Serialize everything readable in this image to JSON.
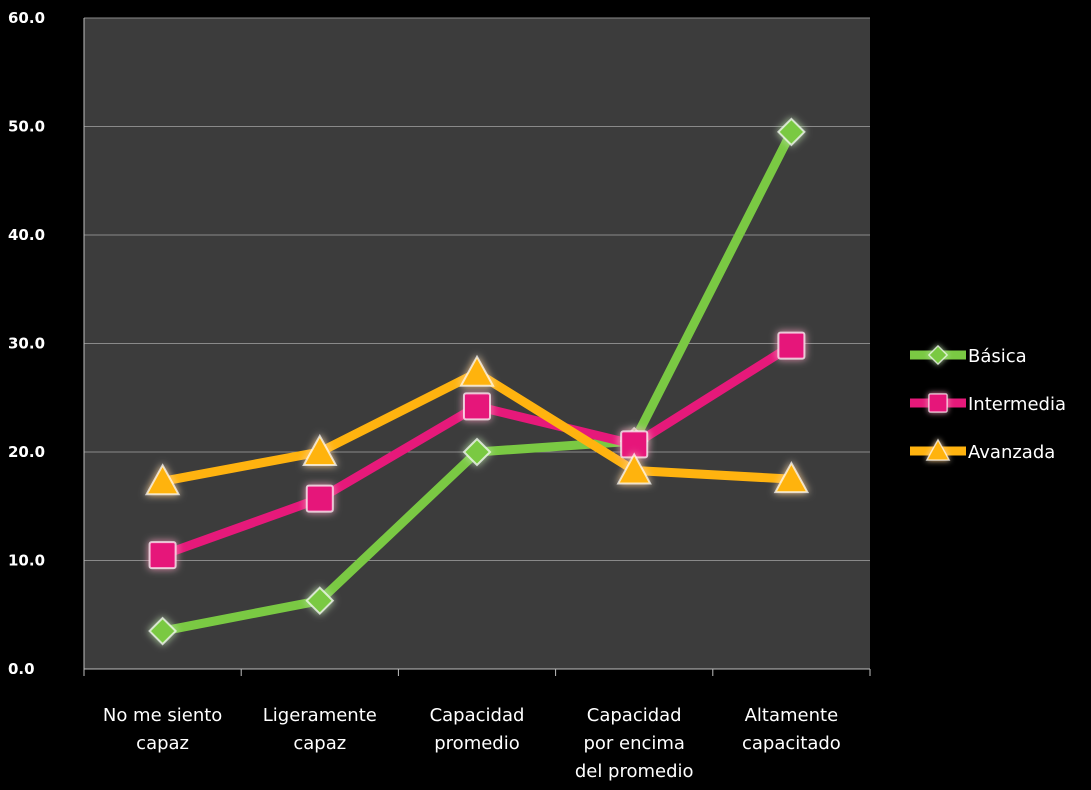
{
  "chart_data": {
    "type": "line",
    "title": "",
    "xlabel": "",
    "ylabel": "",
    "ylim": [
      0,
      60
    ],
    "y_ticks": [
      "0.0",
      "10.0",
      "20.0",
      "30.0",
      "40.0",
      "50.0",
      "60.0"
    ],
    "categories": [
      [
        "No me siento",
        "capaz"
      ],
      [
        "Ligeramente",
        "capaz"
      ],
      [
        "Capacidad",
        "promedio"
      ],
      [
        "Capacidad",
        "por encima",
        "del promedio"
      ],
      [
        "Altamente",
        "capacitado"
      ]
    ],
    "grid": true,
    "legend_position": "right",
    "series": [
      {
        "name": "Básica",
        "values": [
          3.5,
          6.3,
          20.0,
          21.0,
          49.5
        ],
        "color": "#7ac943",
        "marker": "diamond"
      },
      {
        "name": "Intermedia",
        "values": [
          10.5,
          15.7,
          24.2,
          20.7,
          29.8
        ],
        "color": "#e6197a",
        "marker": "square"
      },
      {
        "name": "Avanzada",
        "values": [
          17.3,
          20.0,
          27.3,
          18.3,
          17.5
        ],
        "color": "#ffb30f",
        "marker": "triangle"
      }
    ],
    "colors": {
      "background": "#000000",
      "plot_area": "#3c3c3c",
      "grid": "#8a8a8a",
      "text": "#ffffff"
    }
  }
}
